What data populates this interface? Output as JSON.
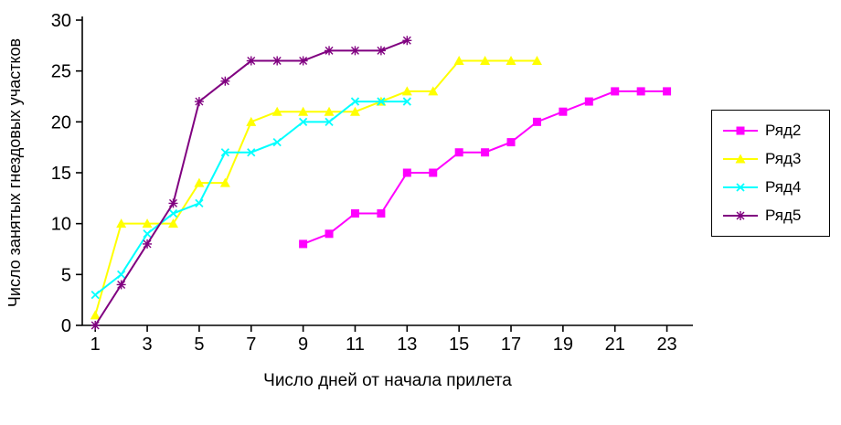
{
  "chart_data": {
    "type": "line",
    "title": "",
    "xlabel": "Число дней от начала прилета",
    "ylabel": "Число занятых гнездовых участков",
    "xlim": [
      0.5,
      24
    ],
    "ylim": [
      0,
      30
    ],
    "x_ticks": [
      1,
      3,
      5,
      7,
      9,
      11,
      13,
      15,
      17,
      19,
      21,
      23
    ],
    "y_ticks": [
      0,
      5,
      10,
      15,
      20,
      25,
      30
    ],
    "grid": false,
    "legend_position": "right",
    "series": [
      {
        "name": "Ряд2",
        "color": "#FF00FF",
        "marker": "square",
        "points": [
          [
            9,
            8
          ],
          [
            10,
            9
          ],
          [
            11,
            11
          ],
          [
            12,
            11
          ],
          [
            13,
            15
          ],
          [
            14,
            15
          ],
          [
            15,
            17
          ],
          [
            16,
            17
          ],
          [
            17,
            18
          ],
          [
            18,
            20
          ],
          [
            19,
            21
          ],
          [
            20,
            22
          ],
          [
            21,
            23
          ],
          [
            22,
            23
          ],
          [
            23,
            23
          ]
        ]
      },
      {
        "name": "Ряд3",
        "color": "#FFFF00",
        "marker": "triangle",
        "points": [
          [
            1,
            1
          ],
          [
            2,
            10
          ],
          [
            3,
            10
          ],
          [
            4,
            10
          ],
          [
            5,
            14
          ],
          [
            6,
            14
          ],
          [
            7,
            20
          ],
          [
            8,
            21
          ],
          [
            9,
            21
          ],
          [
            10,
            21
          ],
          [
            11,
            21
          ],
          [
            12,
            22
          ],
          [
            13,
            23
          ],
          [
            14,
            23
          ],
          [
            15,
            26
          ],
          [
            16,
            26
          ],
          [
            17,
            26
          ],
          [
            18,
            26
          ]
        ]
      },
      {
        "name": "Ряд4",
        "color": "#00FFFF",
        "marker": "x",
        "points": [
          [
            1,
            3
          ],
          [
            2,
            5
          ],
          [
            3,
            9
          ],
          [
            4,
            11
          ],
          [
            5,
            12
          ],
          [
            6,
            17
          ],
          [
            7,
            17
          ],
          [
            8,
            18
          ],
          [
            9,
            20
          ],
          [
            10,
            20
          ],
          [
            11,
            22
          ],
          [
            12,
            22
          ],
          [
            13,
            22
          ]
        ]
      },
      {
        "name": "Ряд5",
        "color": "#800080",
        "marker": "star",
        "points": [
          [
            1,
            0
          ],
          [
            2,
            4
          ],
          [
            3,
            8
          ],
          [
            4,
            12
          ],
          [
            5,
            22
          ],
          [
            6,
            24
          ],
          [
            7,
            26
          ],
          [
            8,
            26
          ],
          [
            9,
            26
          ],
          [
            10,
            27
          ],
          [
            11,
            27
          ],
          [
            12,
            27
          ],
          [
            13,
            28
          ]
        ]
      }
    ]
  }
}
